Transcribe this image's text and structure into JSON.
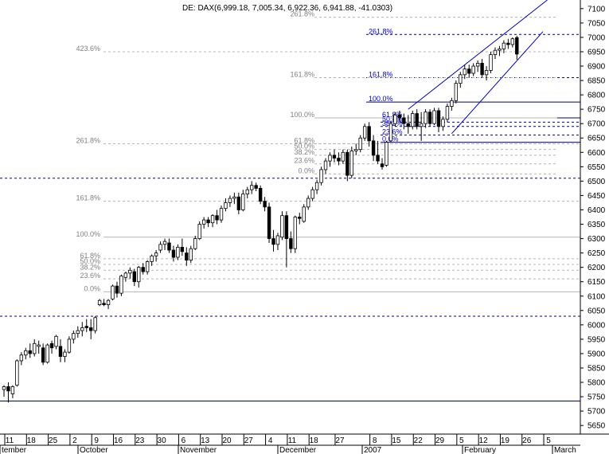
{
  "header": "DE: DAX(6,999.18, 7,005.34, 6,922.36, 6,941.88, -41.0303)",
  "colors": {
    "up_candle": "#ffffff",
    "down_candle": "#000000",
    "fib_guide": "#b4b4b4",
    "fib_label": "#808080",
    "blue_level": "#000080",
    "blue_label": "#0000cc",
    "trendline": "#0000c0"
  },
  "chart_data": {
    "type": "candlestick",
    "title": "DE: DAX(6,999.18, 7,005.34, 6,922.36, 6,941.88, -41.0303)",
    "y_axis": {
      "position": "right",
      "ylim": [
        5620,
        7130
      ],
      "ticks": [
        5650,
        5700,
        5750,
        5800,
        5850,
        5900,
        5950,
        6000,
        6050,
        6100,
        6150,
        6200,
        6250,
        6300,
        6350,
        6400,
        6450,
        6500,
        6550,
        6600,
        6650,
        6700,
        6750,
        6800,
        6850,
        6900,
        6950,
        7000,
        7050,
        7100
      ]
    },
    "x_axis": {
      "day_ticks": [
        "11",
        "18",
        "25",
        "2",
        "9",
        "16",
        "23",
        "30",
        "6",
        "13",
        "20",
        "27",
        "4",
        "11",
        "18",
        "27",
        "8",
        "15",
        "22",
        "29",
        "5",
        "12",
        "19",
        "26",
        "5"
      ],
      "month_labels": [
        "tember",
        "October",
        "November",
        "December",
        "2007",
        "February",
        "March"
      ]
    },
    "candles": [
      {
        "o": 5775,
        "h": 5790,
        "l": 5750,
        "c": 5785
      },
      {
        "o": 5785,
        "h": 5800,
        "l": 5730,
        "c": 5770
      },
      {
        "o": 5760,
        "h": 5790,
        "l": 5745,
        "c": 5785
      },
      {
        "o": 5790,
        "h": 5880,
        "l": 5785,
        "c": 5875
      },
      {
        "o": 5875,
        "h": 5905,
        "l": 5860,
        "c": 5895
      },
      {
        "o": 5895,
        "h": 5920,
        "l": 5880,
        "c": 5910
      },
      {
        "o": 5910,
        "h": 5935,
        "l": 5885,
        "c": 5900
      },
      {
        "o": 5900,
        "h": 5950,
        "l": 5890,
        "c": 5935
      },
      {
        "o": 5925,
        "h": 5945,
        "l": 5900,
        "c": 5930
      },
      {
        "o": 5920,
        "h": 5935,
        "l": 5860,
        "c": 5870
      },
      {
        "o": 5870,
        "h": 5935,
        "l": 5865,
        "c": 5930
      },
      {
        "o": 5935,
        "h": 5945,
        "l": 5900,
        "c": 5920
      },
      {
        "o": 5925,
        "h": 5965,
        "l": 5915,
        "c": 5960
      },
      {
        "o": 5925,
        "h": 5950,
        "l": 5870,
        "c": 5890
      },
      {
        "o": 5890,
        "h": 5915,
        "l": 5870,
        "c": 5905
      },
      {
        "o": 5905,
        "h": 5960,
        "l": 5900,
        "c": 5950
      },
      {
        "o": 5950,
        "h": 5980,
        "l": 5935,
        "c": 5970
      },
      {
        "o": 5970,
        "h": 5995,
        "l": 5955,
        "c": 5980
      },
      {
        "o": 5980,
        "h": 6010,
        "l": 5960,
        "c": 5990
      },
      {
        "o": 5995,
        "h": 6020,
        "l": 5975,
        "c": 5990
      },
      {
        "o": 5990,
        "h": 6020,
        "l": 5950,
        "c": 5980
      },
      {
        "o": 5980,
        "h": 6030,
        "l": 5970,
        "c": 6025
      },
      {
        "o": 6070,
        "h": 6090,
        "l": 6065,
        "c": 6085
      },
      {
        "o": 6075,
        "h": 6090,
        "l": 6065,
        "c": 6070
      },
      {
        "o": 6070,
        "h": 6090,
        "l": 6055,
        "c": 6085
      },
      {
        "o": 6090,
        "h": 6140,
        "l": 6085,
        "c": 6135
      },
      {
        "o": 6135,
        "h": 6150,
        "l": 6095,
        "c": 6110
      },
      {
        "o": 6110,
        "h": 6175,
        "l": 6100,
        "c": 6170
      },
      {
        "o": 6165,
        "h": 6185,
        "l": 6150,
        "c": 6180
      },
      {
        "o": 6180,
        "h": 6200,
        "l": 6160,
        "c": 6190
      },
      {
        "o": 6185,
        "h": 6195,
        "l": 6135,
        "c": 6150
      },
      {
        "o": 6150,
        "h": 6205,
        "l": 6130,
        "c": 6200
      },
      {
        "o": 6200,
        "h": 6215,
        "l": 6175,
        "c": 6185
      },
      {
        "o": 6185,
        "h": 6225,
        "l": 6175,
        "c": 6220
      },
      {
        "o": 6220,
        "h": 6245,
        "l": 6205,
        "c": 6240
      },
      {
        "o": 6240,
        "h": 6260,
        "l": 6220,
        "c": 6250
      },
      {
        "o": 6260,
        "h": 6290,
        "l": 6250,
        "c": 6280
      },
      {
        "o": 6280,
        "h": 6300,
        "l": 6260,
        "c": 6290
      },
      {
        "o": 6285,
        "h": 6300,
        "l": 6250,
        "c": 6260
      },
      {
        "o": 6260,
        "h": 6275,
        "l": 6220,
        "c": 6235
      },
      {
        "o": 6235,
        "h": 6280,
        "l": 6225,
        "c": 6270
      },
      {
        "o": 6270,
        "h": 6300,
        "l": 6240,
        "c": 6255
      },
      {
        "o": 6250,
        "h": 6270,
        "l": 6205,
        "c": 6225
      },
      {
        "o": 6225,
        "h": 6275,
        "l": 6215,
        "c": 6265
      },
      {
        "o": 6265,
        "h": 6310,
        "l": 6260,
        "c": 6300
      },
      {
        "o": 6300,
        "h": 6360,
        "l": 6295,
        "c": 6350
      },
      {
        "o": 6350,
        "h": 6375,
        "l": 6335,
        "c": 6365
      },
      {
        "o": 6365,
        "h": 6375,
        "l": 6340,
        "c": 6355
      },
      {
        "o": 6355,
        "h": 6385,
        "l": 6340,
        "c": 6380
      },
      {
        "o": 6380,
        "h": 6400,
        "l": 6350,
        "c": 6365
      },
      {
        "o": 6365,
        "h": 6415,
        "l": 6355,
        "c": 6405
      },
      {
        "o": 6405,
        "h": 6440,
        "l": 6395,
        "c": 6425
      },
      {
        "o": 6425,
        "h": 6450,
        "l": 6410,
        "c": 6440
      },
      {
        "o": 6440,
        "h": 6460,
        "l": 6420,
        "c": 6445
      },
      {
        "o": 6445,
        "h": 6460,
        "l": 6385,
        "c": 6400
      },
      {
        "o": 6400,
        "h": 6470,
        "l": 6395,
        "c": 6455
      },
      {
        "o": 6455,
        "h": 6480,
        "l": 6440,
        "c": 6470
      },
      {
        "o": 6470,
        "h": 6500,
        "l": 6455,
        "c": 6485
      },
      {
        "o": 6485,
        "h": 6495,
        "l": 6465,
        "c": 6475
      },
      {
        "o": 6475,
        "h": 6485,
        "l": 6420,
        "c": 6430
      },
      {
        "o": 6430,
        "h": 6445,
        "l": 6395,
        "c": 6410
      },
      {
        "o": 6410,
        "h": 6425,
        "l": 6285,
        "c": 6300
      },
      {
        "o": 6300,
        "h": 6330,
        "l": 6255,
        "c": 6280
      },
      {
        "o": 6280,
        "h": 6320,
        "l": 6260,
        "c": 6310
      },
      {
        "o": 6305,
        "h": 6395,
        "l": 6295,
        "c": 6380
      },
      {
        "o": 6380,
        "h": 6395,
        "l": 6200,
        "c": 6300
      },
      {
        "o": 6300,
        "h": 6325,
        "l": 6250,
        "c": 6265
      },
      {
        "o": 6265,
        "h": 6380,
        "l": 6250,
        "c": 6375
      },
      {
        "o": 6375,
        "h": 6390,
        "l": 6350,
        "c": 6370
      },
      {
        "o": 6360,
        "h": 6420,
        "l": 6355,
        "c": 6410
      },
      {
        "o": 6410,
        "h": 6450,
        "l": 6400,
        "c": 6440
      },
      {
        "o": 6440,
        "h": 6480,
        "l": 6430,
        "c": 6470
      },
      {
        "o": 6470,
        "h": 6505,
        "l": 6455,
        "c": 6495
      },
      {
        "o": 6495,
        "h": 6550,
        "l": 6485,
        "c": 6540
      },
      {
        "o": 6540,
        "h": 6580,
        "l": 6525,
        "c": 6570
      },
      {
        "o": 6570,
        "h": 6600,
        "l": 6550,
        "c": 6590
      },
      {
        "o": 6590,
        "h": 6610,
        "l": 6565,
        "c": 6580
      },
      {
        "o": 6580,
        "h": 6600,
        "l": 6555,
        "c": 6570
      },
      {
        "o": 6570,
        "h": 6610,
        "l": 6560,
        "c": 6600
      },
      {
        "o": 6600,
        "h": 6610,
        "l": 6500,
        "c": 6520
      },
      {
        "o": 6520,
        "h": 6620,
        "l": 6510,
        "c": 6605
      },
      {
        "o": 6605,
        "h": 6630,
        "l": 6590,
        "c": 6610
      },
      {
        "o": 6610,
        "h": 6660,
        "l": 6600,
        "c": 6650
      },
      {
        "o": 6650,
        "h": 6700,
        "l": 6640,
        "c": 6690
      },
      {
        "o": 6690,
        "h": 6705,
        "l": 6620,
        "c": 6640
      },
      {
        "o": 6640,
        "h": 6660,
        "l": 6570,
        "c": 6590
      },
      {
        "o": 6590,
        "h": 6640,
        "l": 6560,
        "c": 6570
      },
      {
        "o": 6560,
        "h": 6580,
        "l": 6540,
        "c": 6550
      },
      {
        "o": 6555,
        "h": 6640,
        "l": 6550,
        "c": 6635
      },
      {
        "o": 6640,
        "h": 6710,
        "l": 6635,
        "c": 6700
      },
      {
        "o": 6700,
        "h": 6740,
        "l": 6690,
        "c": 6730
      },
      {
        "o": 6730,
        "h": 6745,
        "l": 6705,
        "c": 6720
      },
      {
        "o": 6720,
        "h": 6735,
        "l": 6680,
        "c": 6700
      },
      {
        "o": 6700,
        "h": 6730,
        "l": 6665,
        "c": 6690
      },
      {
        "o": 6690,
        "h": 6745,
        "l": 6680,
        "c": 6735
      },
      {
        "o": 6735,
        "h": 6750,
        "l": 6680,
        "c": 6690
      },
      {
        "o": 6690,
        "h": 6740,
        "l": 6640,
        "c": 6700
      },
      {
        "o": 6700,
        "h": 6750,
        "l": 6685,
        "c": 6740
      },
      {
        "o": 6740,
        "h": 6750,
        "l": 6690,
        "c": 6700
      },
      {
        "o": 6700,
        "h": 6755,
        "l": 6695,
        "c": 6745
      },
      {
        "o": 6745,
        "h": 6755,
        "l": 6670,
        "c": 6690
      },
      {
        "o": 6690,
        "h": 6725,
        "l": 6675,
        "c": 6715
      },
      {
        "o": 6715,
        "h": 6770,
        "l": 6705,
        "c": 6760
      },
      {
        "o": 6760,
        "h": 6790,
        "l": 6745,
        "c": 6780
      },
      {
        "o": 6780,
        "h": 6850,
        "l": 6770,
        "c": 6840
      },
      {
        "o": 6840,
        "h": 6880,
        "l": 6825,
        "c": 6870
      },
      {
        "o": 6870,
        "h": 6905,
        "l": 6855,
        "c": 6890
      },
      {
        "o": 6890,
        "h": 6905,
        "l": 6860,
        "c": 6875
      },
      {
        "o": 6875,
        "h": 6910,
        "l": 6865,
        "c": 6900
      },
      {
        "o": 6900,
        "h": 6920,
        "l": 6880,
        "c": 6910
      },
      {
        "o": 6910,
        "h": 6925,
        "l": 6860,
        "c": 6870
      },
      {
        "o": 6870,
        "h": 6900,
        "l": 6850,
        "c": 6885
      },
      {
        "o": 6885,
        "h": 6950,
        "l": 6875,
        "c": 6940
      },
      {
        "o": 6940,
        "h": 6965,
        "l": 6925,
        "c": 6955
      },
      {
        "o": 6955,
        "h": 6970,
        "l": 6935,
        "c": 6960
      },
      {
        "o": 6960,
        "h": 6990,
        "l": 6945,
        "c": 6980
      },
      {
        "o": 6980,
        "h": 6995,
        "l": 6960,
        "c": 6975
      },
      {
        "o": 6975,
        "h": 7000,
        "l": 6965,
        "c": 6995
      },
      {
        "o": 6999.18,
        "h": 7005.34,
        "l": 6922.36,
        "c": 6941.88
      }
    ],
    "levels": [
      {
        "price": 7010,
        "label": "261.8%",
        "color": "blue",
        "dash": true,
        "label_pos": "mid-right"
      },
      {
        "price": 6860,
        "label": "161.8%",
        "color": "blue",
        "dash": true,
        "label_pos": "mid-right"
      },
      {
        "price": 6775,
        "label": "100.0%",
        "color": "blue",
        "dash": false,
        "label_pos": "mid-right"
      },
      {
        "price": 6720,
        "label": "61.8%",
        "color": "blue",
        "dash": false,
        "label_pos": "late"
      },
      {
        "price": 6705,
        "label": "50.0%",
        "color": "blue",
        "dash": true,
        "label_pos": "late"
      },
      {
        "price": 6690,
        "label": "38.2%",
        "color": "blue",
        "dash": true,
        "label_pos": "late"
      },
      {
        "price": 6660,
        "label": "23.6%",
        "color": "blue",
        "dash": true,
        "label_pos": "late"
      },
      {
        "price": 6635,
        "label": "0.0%",
        "color": "blue",
        "dash": false,
        "label_pos": "late"
      },
      {
        "price": 6510,
        "label": "",
        "color": "blue",
        "dash": true,
        "label_pos": "none"
      },
      {
        "price": 6030,
        "label": "",
        "color": "blue",
        "dash": true,
        "label_pos": "none"
      },
      {
        "price": 5735,
        "label": "",
        "color": "blue",
        "dash": false,
        "label_pos": "none"
      },
      {
        "price": 7070,
        "label": "261.8%",
        "color": "gray",
        "dash": true,
        "label_pos": "upper"
      },
      {
        "price": 6950,
        "label": "423.6%",
        "color": "gray",
        "dash": true,
        "label_pos": "left"
      },
      {
        "price": 6860,
        "label": "161.8%",
        "color": "gray",
        "dash": true,
        "label_pos": "upper"
      },
      {
        "price": 6720,
        "label": "100.0%",
        "color": "gray",
        "dash": false,
        "label_pos": "upper"
      },
      {
        "price": 6630,
        "label": "261.8%",
        "color": "gray",
        "dash": true,
        "label_pos": "left"
      },
      {
        "price": 6630,
        "label": "61.8%",
        "color": "gray",
        "dash": true,
        "label_pos": "upper"
      },
      {
        "price": 6610,
        "label": "50.0%",
        "color": "gray",
        "dash": true,
        "label_pos": "upper"
      },
      {
        "price": 6590,
        "label": "38.2%",
        "color": "gray",
        "dash": true,
        "label_pos": "upper"
      },
      {
        "price": 6560,
        "label": "23.6%",
        "color": "gray",
        "dash": true,
        "label_pos": "upper"
      },
      {
        "price": 6525,
        "label": "0.0%",
        "color": "gray",
        "dash": true,
        "label_pos": "upper"
      },
      {
        "price": 6430,
        "label": "161.8%",
        "color": "gray",
        "dash": true,
        "label_pos": "left"
      },
      {
        "price": 6305,
        "label": "100.0%",
        "color": "gray",
        "dash": false,
        "label_pos": "left"
      },
      {
        "price": 6230,
        "label": "61.8%",
        "color": "gray",
        "dash": true,
        "label_pos": "left"
      },
      {
        "price": 6210,
        "label": "50.0%",
        "color": "gray",
        "dash": true,
        "label_pos": "left"
      },
      {
        "price": 6190,
        "label": "38.2%",
        "color": "gray",
        "dash": true,
        "label_pos": "left"
      },
      {
        "price": 6160,
        "label": "23.6%",
        "color": "gray",
        "dash": true,
        "label_pos": "left"
      },
      {
        "price": 6115,
        "label": "0.0%",
        "color": "gray",
        "dash": false,
        "label_pos": "left"
      }
    ],
    "trendlines": [
      {
        "from": {
          "bar": 93,
          "price": 6750
        },
        "to": {
          "bar": 125,
          "price": 7130
        }
      },
      {
        "from": {
          "bar": 103,
          "price": 6665
        },
        "to": {
          "bar": 124,
          "price": 7020
        }
      }
    ],
    "grid": false
  }
}
